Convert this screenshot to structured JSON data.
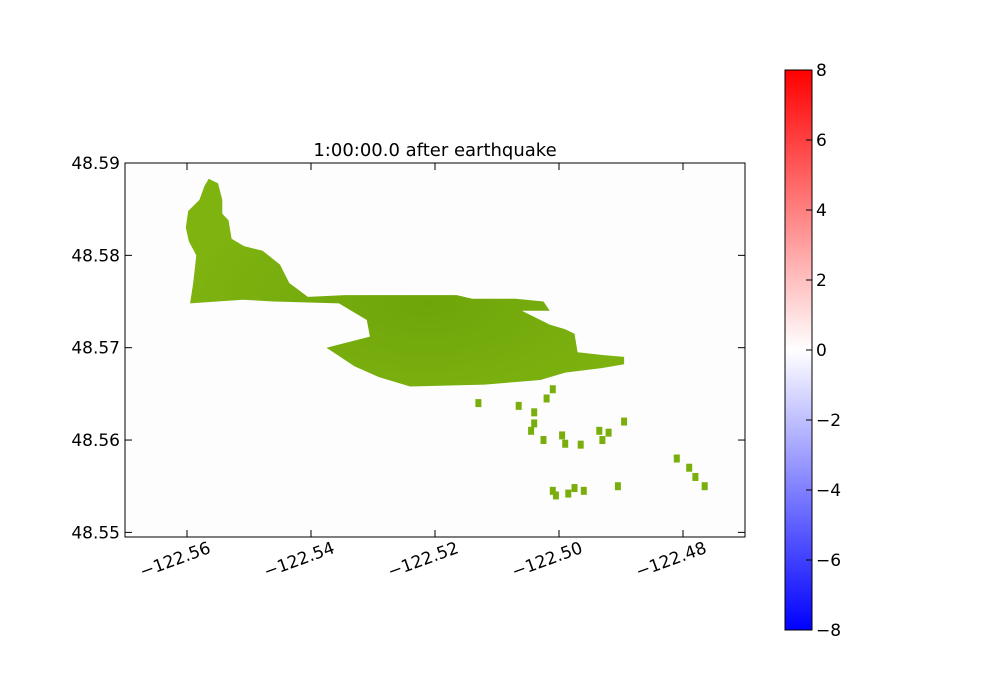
{
  "chart_data": [
    {
      "type": "heatmap",
      "title": "1:00:00.0 after earthquake",
      "xlabel": "",
      "ylabel": "",
      "xlim": [
        -122.57,
        -122.47
      ],
      "ylim": [
        48.5495,
        48.59
      ],
      "x_ticks": [
        -122.56,
        -122.54,
        -122.52,
        -122.5,
        -122.48
      ],
      "x_tick_labels": [
        "−122.56",
        "−122.54",
        "−122.52",
        "−122.50",
        "−122.48"
      ],
      "y_ticks": [
        48.55,
        48.56,
        48.57,
        48.58,
        48.59
      ],
      "y_tick_labels": [
        "48.55",
        "48.56",
        "48.57",
        "48.58",
        "48.59"
      ],
      "grid": false,
      "colormap": "bwr",
      "land_color": "#7aae0c",
      "water_value": 0,
      "land_outline_main": [
        [
          -122.5602,
          48.583
        ],
        [
          -122.5598,
          48.5848
        ],
        [
          -122.558,
          48.586
        ],
        [
          -122.5572,
          48.5875
        ],
        [
          -122.5565,
          48.5883
        ],
        [
          -122.555,
          48.5878
        ],
        [
          -122.5543,
          48.586
        ],
        [
          -122.5543,
          48.5845
        ],
        [
          -122.5533,
          48.5838
        ],
        [
          -122.5528,
          48.5818
        ],
        [
          -122.5508,
          48.581
        ],
        [
          -122.5478,
          48.5805
        ],
        [
          -122.545,
          48.579
        ],
        [
          -122.5435,
          48.577
        ],
        [
          -122.5405,
          48.5755
        ],
        [
          -122.5345,
          48.5757
        ],
        [
          -122.529,
          48.5757
        ],
        [
          -122.5165,
          48.5757
        ],
        [
          -122.514,
          48.5753
        ],
        [
          -122.507,
          48.5753
        ],
        [
          -122.5025,
          48.575
        ],
        [
          -122.5015,
          48.574
        ],
        [
          -122.506,
          48.574
        ],
        [
          -122.5015,
          48.5725
        ],
        [
          -122.499,
          48.572
        ],
        [
          -122.4975,
          48.5715
        ],
        [
          -122.497,
          48.5695
        ],
        [
          -122.4928,
          48.5692
        ],
        [
          -122.4895,
          48.569
        ],
        [
          -122.4895,
          48.5682
        ],
        [
          -122.493,
          48.5678
        ],
        [
          -122.499,
          48.5673
        ],
        [
          -122.503,
          48.5665
        ],
        [
          -122.512,
          48.566
        ],
        [
          -122.524,
          48.5658
        ],
        [
          -122.529,
          48.5668
        ],
        [
          -122.533,
          48.568
        ],
        [
          -122.5375,
          48.57
        ],
        [
          -122.5305,
          48.5712
        ],
        [
          -122.531,
          48.573
        ],
        [
          -122.5355,
          48.5748
        ],
        [
          -122.546,
          48.575
        ],
        [
          -122.551,
          48.5752
        ],
        [
          -122.5595,
          48.5748
        ],
        [
          -122.559,
          48.577
        ],
        [
          -122.5585,
          48.58
        ],
        [
          -122.5597,
          48.5815
        ]
      ],
      "land_patches": [
        [
          -122.501,
          48.5655
        ],
        [
          -122.502,
          48.5645
        ],
        [
          -122.5065,
          48.5637
        ],
        [
          -122.513,
          48.564
        ],
        [
          -122.504,
          48.563
        ],
        [
          -122.504,
          48.5618
        ],
        [
          -122.5045,
          48.561
        ],
        [
          -122.5025,
          48.56
        ],
        [
          -122.4995,
          48.5605
        ],
        [
          -122.499,
          48.5596
        ],
        [
          -122.4965,
          48.5595
        ],
        [
          -122.4935,
          48.561
        ],
        [
          -122.492,
          48.5608
        ],
        [
          -122.493,
          48.56
        ],
        [
          -122.4895,
          48.562
        ],
        [
          -122.481,
          48.558
        ],
        [
          -122.479,
          48.557
        ],
        [
          -122.478,
          48.556
        ],
        [
          -122.4765,
          48.555
        ],
        [
          -122.501,
          48.5545
        ],
        [
          -122.5005,
          48.554
        ],
        [
          -122.4975,
          48.5548
        ],
        [
          -122.4985,
          48.5542
        ],
        [
          -122.496,
          48.5545
        ],
        [
          -122.4905,
          48.555
        ]
      ]
    },
    {
      "type": "heatmap",
      "title": "",
      "colorbar": true,
      "colormap": "bwr",
      "ylim": [
        -8,
        8
      ],
      "ticks": [
        8,
        6,
        4,
        2,
        0,
        -2,
        -4,
        -6,
        -8
      ],
      "tick_labels": [
        "8",
        "6",
        "4",
        "2",
        "0",
        "−2",
        "−4",
        "−6",
        "−8"
      ]
    }
  ]
}
